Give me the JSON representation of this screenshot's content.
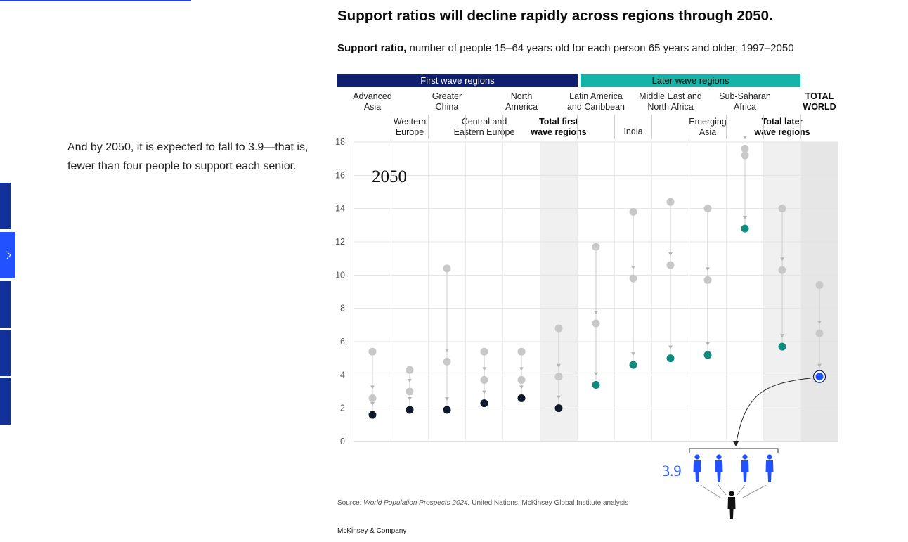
{
  "narrative": "And by 2050, it is expected to fall to 3.9—that is, fewer than four people to support each senior.",
  "title": "Support ratios will decline rapidly across regions through 2050.",
  "subtitle_bold": "Support ratio,",
  "subtitle_rest": " number of people 15–64 years old for each person 65 years and older, 1997–2050",
  "bands": {
    "first": "First wave regions",
    "later": "Later wave regions"
  },
  "year_label": "2050",
  "callout_value": "3.9",
  "source_prefix": "Source: ",
  "source_italic": "World Population Prospects 2024,",
  "source_rest": " United Nations; McKinsey Global Institute analysis",
  "brand": "McKinsey & Company",
  "colors": {
    "navy": "#0f1f70",
    "teal": "#14b5a8",
    "dot_first": "#0e1a2b",
    "dot_later": "#0f8a7e",
    "dot_world": "#2251ff",
    "grey_dot": "#c8c8c8"
  },
  "chart_data": {
    "type": "scatter",
    "title": "Support ratios will decline rapidly across regions through 2050.",
    "ylim": [
      0,
      18
    ],
    "yticks": [
      "0",
      "2",
      "4",
      "6",
      "8",
      "10",
      "12",
      "14",
      "16",
      "18"
    ],
    "grid": true,
    "categories": [
      {
        "label": [
          "Advanced",
          "Asia"
        ],
        "group": "first",
        "bold": false,
        "past": [
          5.4,
          2.6
        ],
        "value_2050": 1.6
      },
      {
        "label": [
          "Western",
          "Europe"
        ],
        "group": "first",
        "bold": false,
        "past": [
          4.3,
          3.0
        ],
        "value_2050": 1.9
      },
      {
        "label": [
          "Greater",
          "China"
        ],
        "group": "first",
        "bold": false,
        "past": [
          10.4,
          4.8
        ],
        "value_2050": 1.9
      },
      {
        "label": [
          "Central and",
          "Eastern Europe"
        ],
        "group": "first",
        "bold": false,
        "past": [
          5.4,
          3.7
        ],
        "value_2050": 2.3
      },
      {
        "label": [
          "North",
          "America"
        ],
        "group": "first",
        "bold": false,
        "past": [
          5.4,
          3.7
        ],
        "value_2050": 2.6
      },
      {
        "label": [
          "Total  first",
          "wave regions"
        ],
        "group": "first",
        "bold": true,
        "past": [
          6.8,
          3.9
        ],
        "value_2050": 2.0
      },
      {
        "label": [
          "Latin America",
          "and Caribbean"
        ],
        "group": "later",
        "bold": false,
        "past": [
          11.7,
          7.1
        ],
        "value_2050": 3.4
      },
      {
        "label": [
          "India"
        ],
        "group": "later",
        "bold": false,
        "past": [
          13.8,
          9.8
        ],
        "value_2050": 4.6
      },
      {
        "label": [
          "Middle East and",
          "North Africa"
        ],
        "group": "later",
        "bold": false,
        "past": [
          14.4,
          10.6
        ],
        "value_2050": 5.0
      },
      {
        "label": [
          "Emerging",
          "Asia"
        ],
        "group": "later",
        "bold": false,
        "past": [
          14.0,
          9.7
        ],
        "value_2050": 5.2
      },
      {
        "label": [
          "Sub-Saharan",
          "Africa"
        ],
        "group": "later",
        "bold": false,
        "past": [
          17.2,
          17.6
        ],
        "value_2050": 12.8
      },
      {
        "label": [
          "Total later",
          "wave regions"
        ],
        "group": "later",
        "bold": true,
        "past": [
          14.0,
          10.3
        ],
        "value_2050": 5.7
      },
      {
        "label": [
          "TOTAL",
          "WORLD"
        ],
        "group": "world",
        "bold": true,
        "past": [
          9.4,
          6.5
        ],
        "value_2050": 3.9
      }
    ]
  }
}
